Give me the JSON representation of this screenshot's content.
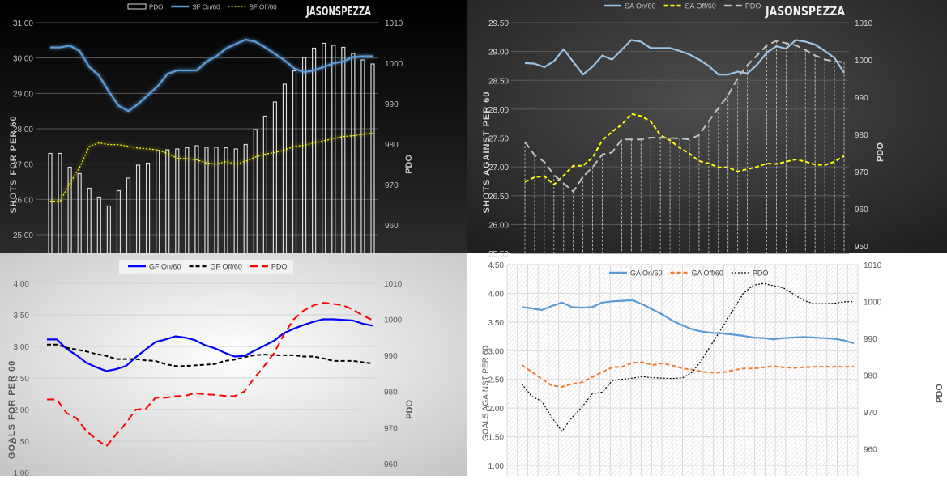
{
  "chart_data": [
    {
      "type": "line",
      "watermark": "JASONSPEZZA",
      "ylabel": "SHOTS FOR PER 60",
      "y2label": "PDO",
      "ylim": [
        24.5,
        31
      ],
      "y2lim": [
        953,
        1010
      ],
      "yticks": [
        "31.00",
        "30.00",
        "29.00",
        "28.00",
        "27.00",
        "26.00",
        "25.00"
      ],
      "y2ticks": [
        "1010",
        "1000",
        "990",
        "980",
        "970",
        "960"
      ],
      "grid": true,
      "legend": "top",
      "series": [
        {
          "name": "PDO",
          "kind": "bar",
          "axis": "right",
          "color": "#d9d9d9",
          "values": [
            977.7,
            977.7,
            974.3,
            972.7,
            969.1,
            966.9,
            964.7,
            968.5,
            971.6,
            974.8,
            975.3,
            978.4,
            978.6,
            978.8,
            979.1,
            979.6,
            979.2,
            979.2,
            979.1,
            978.8,
            979.9,
            983.6,
            986.9,
            990.4,
            994.8,
            998.1,
            1001.4,
            1003.7,
            1004.9,
            1004.4,
            1003.9,
            1002.4,
            1000.8,
            999.8
          ]
        },
        {
          "name": "SF On/60",
          "kind": "line",
          "style": "solid",
          "axis": "left",
          "color": "#5b9bd5",
          "values": [
            30.3,
            30.3,
            30.35,
            30.2,
            29.75,
            29.5,
            29.05,
            28.65,
            28.5,
            28.7,
            28.95,
            29.2,
            29.55,
            29.65,
            29.65,
            29.65,
            29.9,
            30.05,
            30.27,
            30.4,
            30.52,
            30.46,
            30.3,
            30.12,
            29.93,
            29.7,
            29.6,
            29.65,
            29.75,
            29.85,
            29.9,
            30.03,
            30.05,
            30.05
          ]
        },
        {
          "name": "SF Off/60",
          "kind": "line",
          "style": "dot",
          "axis": "left",
          "color": "#ffff00",
          "values": [
            25.95,
            25.95,
            26.45,
            26.9,
            27.5,
            27.6,
            27.55,
            27.55,
            27.5,
            27.45,
            27.43,
            27.4,
            27.3,
            27.17,
            27.15,
            27.12,
            27.03,
            27.0,
            27.07,
            27.0,
            27.08,
            27.2,
            27.28,
            27.33,
            27.4,
            27.5,
            27.53,
            27.6,
            27.66,
            27.72,
            27.78,
            27.8,
            27.84,
            27.88
          ]
        }
      ]
    },
    {
      "type": "line",
      "watermark": "JASONSPEZZA",
      "ylabel": "SHOTS AGAINST PER 60",
      "y2label": "PDO",
      "ylim": [
        25.5,
        29.5
      ],
      "y2lim": [
        948,
        1010
      ],
      "yticks": [
        "29.50",
        "29.00",
        "28.50",
        "28.00",
        "27.50",
        "27.00",
        "26.50",
        "26.00",
        "25.50"
      ],
      "y2ticks": [
        "1010",
        "1000",
        "990",
        "980",
        "970",
        "960",
        "950"
      ],
      "grid": true,
      "legend": "top",
      "series": [
        {
          "name": "SA On/60",
          "kind": "line",
          "style": "solid",
          "axis": "left",
          "color": "#9dc3e6",
          "values": [
            28.8,
            28.79,
            28.73,
            28.83,
            29.04,
            28.82,
            28.6,
            28.74,
            28.93,
            28.86,
            29.03,
            29.2,
            29.17,
            29.06,
            29.06,
            29.06,
            29.01,
            28.95,
            28.86,
            28.75,
            28.6,
            28.6,
            28.65,
            28.62,
            28.77,
            28.98,
            29.09,
            29.05,
            29.2,
            29.17,
            29.12,
            29.01,
            28.89,
            28.63
          ]
        },
        {
          "name": "SA Off/60",
          "kind": "line",
          "style": "dash",
          "axis": "left",
          "color": "#ffff00",
          "values": [
            26.74,
            26.82,
            26.84,
            26.69,
            26.85,
            27.02,
            27.02,
            27.16,
            27.46,
            27.61,
            27.73,
            27.92,
            27.88,
            27.79,
            27.55,
            27.46,
            27.33,
            27.23,
            27.1,
            27.06,
            26.99,
            26.99,
            26.92,
            26.96,
            27.0,
            27.06,
            27.05,
            27.09,
            27.13,
            27.09,
            27.04,
            27.03,
            27.09,
            27.19
          ]
        },
        {
          "name": "PDO",
          "kind": "line",
          "style": "longdash",
          "axis": "right",
          "color": "#bfbfbf",
          "drop": true,
          "values": [
            978.0,
            974.4,
            972.6,
            969.1,
            966.8,
            964.6,
            968.6,
            971.2,
            974.6,
            975.1,
            978.6,
            978.6,
            978.6,
            979.1,
            979.1,
            979.0,
            978.9,
            978.6,
            979.8,
            983.5,
            987.1,
            990.4,
            995.1,
            998.6,
            1001.2,
            1003.9,
            1005.1,
            1004.5,
            1003.9,
            1002.7,
            1001.2,
            1000.1,
            999.6,
            999.4
          ]
        }
      ]
    },
    {
      "type": "line",
      "ylabel": "GOALS FOR PER 60",
      "y2label": "PDO",
      "ylim": [
        1.0,
        4.0
      ],
      "y2lim": [
        957.5,
        1010
      ],
      "yticks": [
        "4.00",
        "3.50",
        "3.00",
        "2.50",
        "2.00",
        "1.50",
        "1.00"
      ],
      "y2ticks": [
        "1010",
        "1000",
        "990",
        "980",
        "970",
        "960"
      ],
      "grid": true,
      "legend": "top",
      "series": [
        {
          "name": "GF On/60",
          "kind": "line",
          "style": "solid",
          "axis": "left",
          "color": "#0000ff",
          "values": [
            3.11,
            3.11,
            2.96,
            2.86,
            2.74,
            2.67,
            2.61,
            2.64,
            2.69,
            2.83,
            2.95,
            3.07,
            3.11,
            3.16,
            3.14,
            3.1,
            3.02,
            2.97,
            2.9,
            2.84,
            2.85,
            2.93,
            3.01,
            3.09,
            3.21,
            3.28,
            3.34,
            3.39,
            3.43,
            3.43,
            3.42,
            3.41,
            3.36,
            3.33
          ]
        },
        {
          "name": "GF Off/60",
          "kind": "line",
          "style": "dash",
          "axis": "left",
          "color": "#000000",
          "values": [
            3.03,
            3.03,
            2.98,
            2.95,
            2.92,
            2.88,
            2.85,
            2.8,
            2.8,
            2.8,
            2.78,
            2.77,
            2.72,
            2.69,
            2.69,
            2.7,
            2.71,
            2.72,
            2.77,
            2.79,
            2.83,
            2.86,
            2.87,
            2.86,
            2.86,
            2.86,
            2.84,
            2.84,
            2.81,
            2.77,
            2.77,
            2.77,
            2.75,
            2.73
          ]
        },
        {
          "name": "PDO",
          "kind": "line",
          "style": "longdash",
          "axis": "right",
          "color": "#ff0000",
          "values": [
            977.8,
            977.8,
            974.0,
            972.6,
            969.0,
            966.8,
            964.8,
            968.1,
            971.2,
            975.0,
            975.2,
            978.3,
            978.3,
            978.7,
            978.8,
            979.6,
            979.2,
            979.1,
            978.8,
            978.7,
            980.0,
            983.7,
            987.0,
            990.6,
            995.8,
            1000.0,
            1002.4,
            1003.9,
            1004.6,
            1004.3,
            1003.9,
            1002.7,
            1001.1,
            999.8
          ]
        }
      ]
    },
    {
      "type": "line",
      "ylabel": "GOALS AGAINST PER 60",
      "y2label": "PDO",
      "ylim": [
        1.0,
        4.5
      ],
      "y2lim": [
        955.5,
        1010
      ],
      "yticks": [
        "4.50",
        "4.00",
        "3.50",
        "3.00",
        "2.50",
        "2.00",
        "1.50",
        "1.00"
      ],
      "y2ticks": [
        "1010",
        "1000",
        "990",
        "980",
        "970",
        "960"
      ],
      "grid": true,
      "legend": "top",
      "series": [
        {
          "name": "GA On/60",
          "kind": "line",
          "style": "solid",
          "axis": "left",
          "color": "#5b9bd5",
          "values": [
            3.76,
            3.74,
            3.71,
            3.78,
            3.84,
            3.76,
            3.75,
            3.76,
            3.84,
            3.86,
            3.87,
            3.88,
            3.81,
            3.72,
            3.63,
            3.52,
            3.44,
            3.37,
            3.33,
            3.31,
            3.3,
            3.28,
            3.26,
            3.23,
            3.22,
            3.2,
            3.22,
            3.23,
            3.24,
            3.23,
            3.22,
            3.21,
            3.18,
            3.13
          ]
        },
        {
          "name": "GA Off/60",
          "kind": "line",
          "style": "dash",
          "axis": "left",
          "color": "#ed7d31",
          "values": [
            2.75,
            2.63,
            2.51,
            2.39,
            2.37,
            2.42,
            2.45,
            2.54,
            2.63,
            2.71,
            2.72,
            2.79,
            2.8,
            2.75,
            2.78,
            2.74,
            2.69,
            2.67,
            2.63,
            2.62,
            2.62,
            2.66,
            2.69,
            2.69,
            2.71,
            2.73,
            2.71,
            2.7,
            2.71,
            2.72,
            2.72,
            2.72,
            2.72,
            2.72
          ]
        },
        {
          "name": "PDO",
          "kind": "line",
          "style": "dot",
          "axis": "right",
          "color": "#000000",
          "values": [
            977.6,
            974.3,
            972.9,
            968.5,
            964.8,
            968.5,
            971.4,
            974.9,
            975.4,
            978.5,
            978.9,
            979.2,
            979.6,
            979.3,
            979.2,
            979.1,
            979.3,
            980.9,
            984.6,
            989.0,
            993.3,
            997.7,
            1002.1,
            1004.4,
            1004.9,
            1004.3,
            1003.7,
            1002.0,
            1000.3,
            999.4,
            999.4,
            999.5,
            999.9,
            1000.0
          ]
        }
      ]
    }
  ]
}
